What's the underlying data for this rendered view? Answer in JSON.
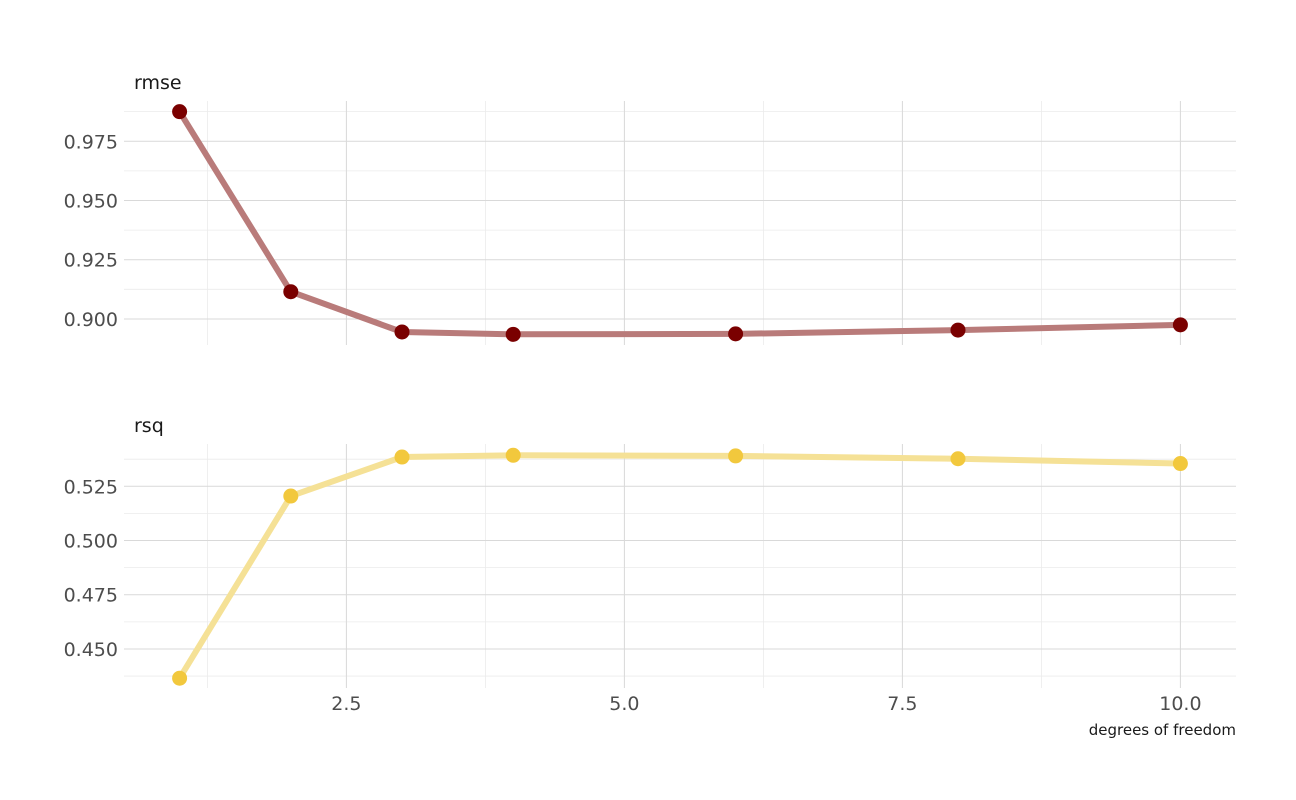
{
  "chart_data": {
    "type": "line",
    "xlabel": "degrees of freedom",
    "x_ticks": [
      "2.5",
      "5.0",
      "7.5",
      "10.0"
    ],
    "x_tick_values": [
      2.5,
      5.0,
      7.5,
      10.0
    ],
    "xlim": [
      0.5,
      10.5
    ],
    "grid": true,
    "legend": "none",
    "panels": [
      {
        "title": "rmse",
        "color_line": "#b97b7a",
        "color_point": "#7a0000",
        "y_ticks": [
          "0.900",
          "0.925",
          "0.950",
          "0.975"
        ],
        "y_tick_values": [
          0.9,
          0.925,
          0.95,
          0.975
        ],
        "ylim": [
          0.889,
          0.992
        ],
        "x": [
          1,
          2,
          3,
          4,
          6,
          8,
          10
        ],
        "values": [
          0.9875,
          0.9115,
          0.8945,
          0.8935,
          0.8937,
          0.8953,
          0.8975
        ]
      },
      {
        "title": "rsq",
        "color_line": "#f5e196",
        "color_point": "#f2c83d",
        "y_ticks": [
          "0.450",
          "0.475",
          "0.500",
          "0.525"
        ],
        "y_tick_values": [
          0.45,
          0.475,
          0.5,
          0.525
        ],
        "ylim": [
          0.432,
          0.5445
        ],
        "x": [
          1,
          2,
          3,
          4,
          6,
          8,
          10
        ],
        "values": [
          0.4365,
          0.5205,
          0.5385,
          0.5393,
          0.539,
          0.5377,
          0.5355
        ]
      }
    ]
  }
}
